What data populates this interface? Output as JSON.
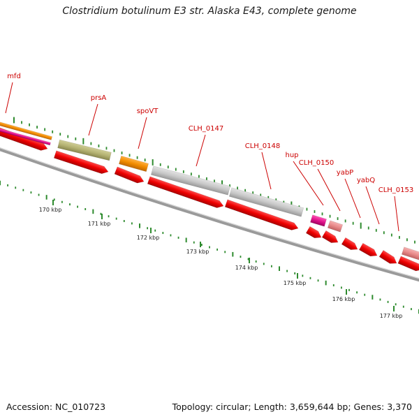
{
  "title": "Clostridium botulinum E3 str. Alaska E43, complete genome",
  "accession_label": "Accession: NC_010723",
  "summary_label": "Topology: circular; Length: 3,659,644 bp; Genes: 3,370",
  "ruler": {
    "ticks": [
      {
        "kbp": 170,
        "label": "170 kbp"
      },
      {
        "kbp": 171,
        "label": "171 kbp"
      },
      {
        "kbp": 172,
        "label": "172 kbp"
      },
      {
        "kbp": 173,
        "label": "173 kbp"
      },
      {
        "kbp": 174,
        "label": "174 kbp"
      },
      {
        "kbp": 175,
        "label": "175 kbp"
      },
      {
        "kbp": 176,
        "label": "176 kbp"
      },
      {
        "kbp": 177,
        "label": "177 kbp"
      }
    ]
  },
  "gene_labels": [
    {
      "name": "mfd"
    },
    {
      "name": "prsA"
    },
    {
      "name": "spoVT"
    },
    {
      "name": "CLH_0147"
    },
    {
      "name": "CLH_0148"
    },
    {
      "name": "hup"
    },
    {
      "name": "CLH_0150"
    },
    {
      "name": "yabP"
    },
    {
      "name": "yabQ"
    },
    {
      "name": "CLH_0153"
    }
  ],
  "colors": {
    "label_text": "#cc0000",
    "cds_forward": "#ee0000",
    "tick_green": "#2e8b2e",
    "backbone": "#888888",
    "feature_olive": "#b5b373",
    "feature_orange": "#f28c00",
    "feature_magenta": "#e0148c",
    "feature_gray": "#c4c4c4",
    "feature_pink": "#e88a8a"
  }
}
